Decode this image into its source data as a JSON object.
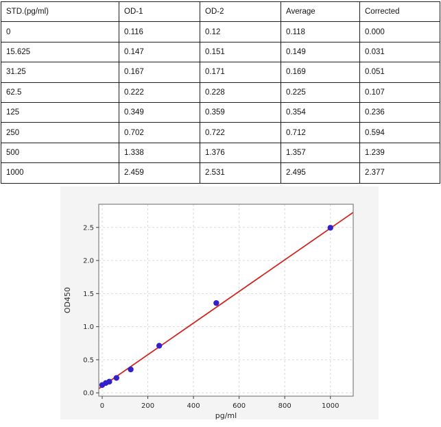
{
  "table": {
    "columns": [
      "STD.(pg/ml)",
      "OD-1",
      "OD-2",
      "Average",
      "Corrected"
    ],
    "rows": [
      [
        "0",
        "0.116",
        "0.12",
        "0.118",
        "0.000"
      ],
      [
        "15.625",
        "0.147",
        "0.151",
        "0.149",
        "0.031"
      ],
      [
        "31.25",
        "0.167",
        "0.171",
        "0.169",
        "0.051"
      ],
      [
        "62.5",
        "0.222",
        "0.228",
        "0.225",
        "0.107"
      ],
      [
        "125",
        "0.349",
        "0.359",
        "0.354",
        "0.236"
      ],
      [
        "250",
        "0.702",
        "0.722",
        "0.712",
        "0.594"
      ],
      [
        "500",
        "1.338",
        "1.376",
        "1.357",
        "1.239"
      ],
      [
        "1000",
        "2.459",
        "2.531",
        "2.495",
        "2.377"
      ]
    ]
  },
  "chart_data": {
    "type": "scatter",
    "title": "",
    "xlabel": "pg/ml",
    "ylabel": "OD450",
    "x": [
      0,
      15.625,
      31.25,
      62.5,
      125,
      250,
      500,
      1000
    ],
    "y": [
      0.118,
      0.149,
      0.169,
      0.225,
      0.354,
      0.712,
      1.357,
      2.495
    ],
    "fit_line": {
      "slope": 0.00239,
      "intercept": 0.098
    },
    "xlim": [
      -15,
      1100
    ],
    "ylim": [
      -0.05,
      2.85
    ],
    "x_ticks": [
      0,
      200,
      400,
      600,
      800,
      1000
    ],
    "y_ticks": [
      0.0,
      0.5,
      1.0,
      1.5,
      2.0,
      2.5
    ],
    "grid": true,
    "legend": "none",
    "point_color": "#3420c8",
    "line_color": "#cf2722",
    "figure_bg": "#f4f4f5",
    "plot_bg": "#ffffff",
    "grid_color": "#d9d9d9",
    "axis_border_color": "#7f7f7f",
    "tick_text_color": "#262626"
  }
}
